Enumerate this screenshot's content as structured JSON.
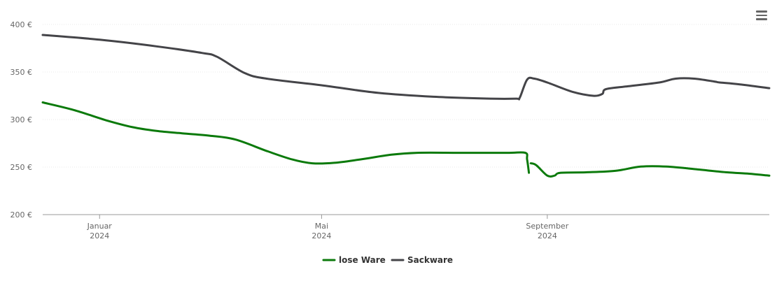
{
  "chart_data": {
    "type": "line",
    "currency": "€",
    "ylim": [
      200,
      400
    ],
    "yticks": [
      200,
      250,
      300,
      350,
      400
    ],
    "ytick_labels": [
      "200 €",
      "250 €",
      "300 €",
      "350 €",
      "400 €"
    ],
    "xlim": [
      "2023-12-01",
      "2024-12-31"
    ],
    "xticks": [
      {
        "date": "2024-01-01",
        "month": "Januar",
        "year": "2024"
      },
      {
        "date": "2024-05-01",
        "month": "Mai",
        "year": "2024"
      },
      {
        "date": "2024-09-01",
        "month": "September",
        "year": "2024"
      }
    ],
    "legend_position": "bottom-center",
    "grid": true,
    "series": [
      {
        "name": "lose Ware",
        "color": "#0b7a0b",
        "segments": [
          [
            [
              "2023-12-01",
              318
            ],
            [
              "2023-12-18",
              310
            ],
            [
              "2024-01-05",
              299
            ],
            [
              "2024-01-19",
              292
            ],
            [
              "2024-02-01",
              288
            ],
            [
              "2024-02-15",
              285.5
            ],
            [
              "2024-03-01",
              283
            ],
            [
              "2024-03-15",
              279
            ],
            [
              "2024-04-01",
              267
            ],
            [
              "2024-04-15",
              258
            ],
            [
              "2024-04-26",
              254
            ],
            [
              "2024-05-08",
              254.5
            ],
            [
              "2024-05-22",
              258
            ],
            [
              "2024-06-08",
              263
            ],
            [
              "2024-06-22",
              265
            ],
            [
              "2024-07-15",
              265
            ],
            [
              "2024-08-10",
              265
            ],
            [
              "2024-08-20",
              265
            ],
            [
              "2024-08-21",
              258
            ],
            [
              "2024-08-22",
              244
            ]
          ],
          [
            [
              "2024-08-23",
              254
            ],
            [
              "2024-08-26",
              252
            ],
            [
              "2024-09-01",
              241
            ],
            [
              "2024-09-05",
              241
            ],
            [
              "2024-09-08",
              244
            ],
            [
              "2024-09-22",
              244.5
            ],
            [
              "2024-10-08",
              246
            ],
            [
              "2024-10-22",
              250.5
            ],
            [
              "2024-11-05",
              250.5
            ],
            [
              "2024-11-22",
              247.5
            ],
            [
              "2024-12-08",
              244.5
            ],
            [
              "2024-12-20",
              243
            ],
            [
              "2024-12-31",
              241
            ]
          ]
        ]
      },
      {
        "name": "Sackware",
        "color": "#444448",
        "segments": [
          [
            [
              "2023-12-01",
              389
            ],
            [
              "2024-01-01",
              384
            ],
            [
              "2024-02-01",
              377
            ],
            [
              "2024-02-26",
              370
            ],
            [
              "2024-03-05",
              366
            ],
            [
              "2024-03-20",
              349
            ],
            [
              "2024-04-01",
              343
            ],
            [
              "2024-05-01",
              336
            ],
            [
              "2024-06-01",
              328
            ],
            [
              "2024-07-01",
              324
            ],
            [
              "2024-08-01",
              322
            ],
            [
              "2024-08-15",
              322
            ],
            [
              "2024-08-17",
              323
            ],
            [
              "2024-08-21",
              342
            ],
            [
              "2024-08-25",
              343
            ],
            [
              "2024-09-01",
              339
            ],
            [
              "2024-09-15",
              329
            ],
            [
              "2024-09-26",
              325
            ],
            [
              "2024-10-01",
              327
            ],
            [
              "2024-10-03",
              332
            ],
            [
              "2024-10-15",
              335
            ],
            [
              "2024-11-01",
              339
            ],
            [
              "2024-11-10",
              343
            ],
            [
              "2024-11-20",
              343
            ],
            [
              "2024-12-01",
              340
            ],
            [
              "2024-12-04",
              339
            ],
            [
              "2024-12-15",
              337
            ],
            [
              "2024-12-31",
              333
            ]
          ]
        ]
      }
    ]
  }
}
